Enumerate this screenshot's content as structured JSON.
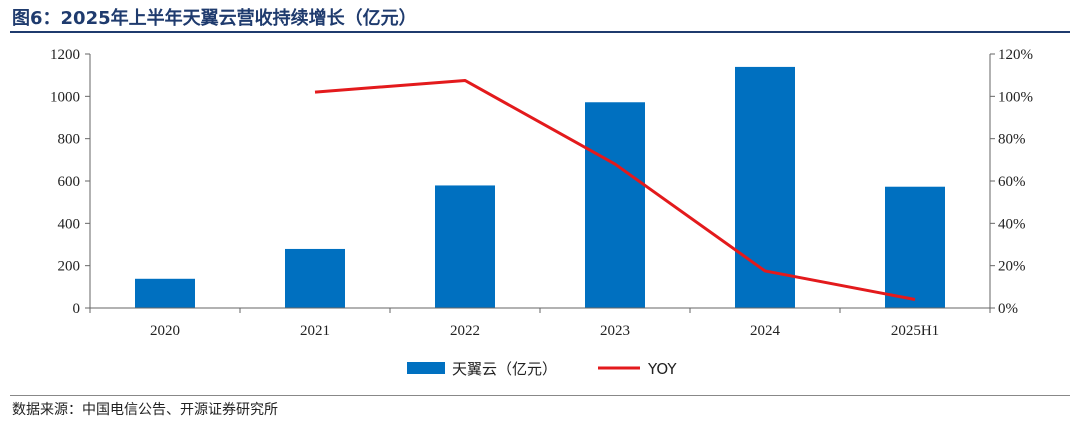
{
  "title": "图6：2025年上半年天翼云营收持续增长（亿元）",
  "source": "数据来源：中国电信公告、开源证券研究所",
  "chart_data": {
    "type": "bar+line",
    "categories": [
      "2020",
      "2021",
      "2022",
      "2023",
      "2024",
      "2025H1"
    ],
    "series": [
      {
        "name": "天翼云（亿元）",
        "type": "bar",
        "axis": "left",
        "color": "#0070c0",
        "values": [
          138,
          279,
          579,
          972,
          1139,
          573
        ]
      },
      {
        "name": "YOY",
        "type": "line",
        "axis": "right",
        "color": "#e31a1c",
        "values": [
          null,
          102,
          107.5,
          68,
          17.5,
          4
        ]
      }
    ],
    "y_left": {
      "min": 0,
      "max": 1200,
      "step": 200,
      "ticks": [
        "0",
        "200",
        "400",
        "600",
        "800",
        "1000",
        "1200"
      ]
    },
    "y_right": {
      "min": 0,
      "max": 120,
      "step": 20,
      "ticks": [
        "0%",
        "20%",
        "40%",
        "60%",
        "80%",
        "100%",
        "120%"
      ]
    },
    "legend": {
      "position": "bottom"
    }
  }
}
